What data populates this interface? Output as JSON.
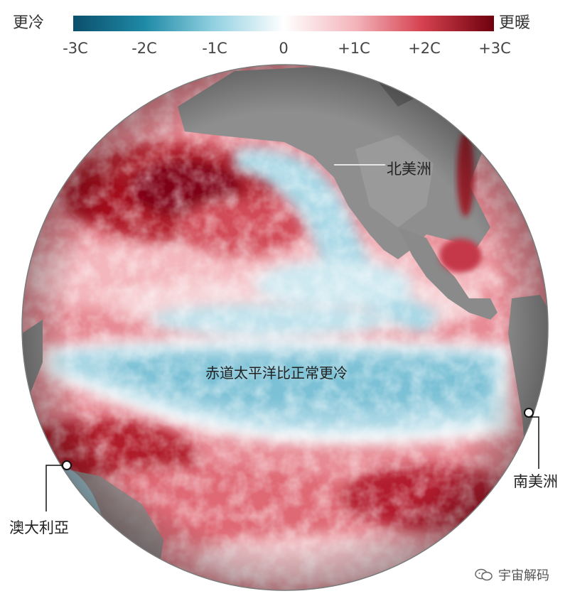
{
  "legend": {
    "cold_label": "更冷",
    "warm_label": "更暖",
    "ticks": [
      "-3C",
      "-2C",
      "-1C",
      "0",
      "+1C",
      "+2C",
      "+3C"
    ],
    "scale_min": -3,
    "scale_max": 3,
    "colors": {
      "cold_deep": "#0b4f6c",
      "cold_mid": "#2a9fb8",
      "cold_light": "#bfe3ee",
      "neutral": "#ffffff",
      "warm_light": "#f4b9bf",
      "warm_mid": "#d9505d",
      "warm_deep": "#7a0010"
    }
  },
  "map": {
    "labels": {
      "north_america": "北美洲",
      "equatorial_pacific": "赤道太平洋比正常更冷",
      "south_america": "南美洲",
      "australia": "澳大利亞"
    },
    "colors": {
      "land": "#8c8c8c",
      "land_dark": "#6e6e6e",
      "ocean_cold": "#8fcbdc",
      "ocean_warm": "#e6868f",
      "ocean_hot": "#8e0d19"
    }
  },
  "watermark": {
    "text": "宇宙解码",
    "icon": "wechat-icon"
  }
}
